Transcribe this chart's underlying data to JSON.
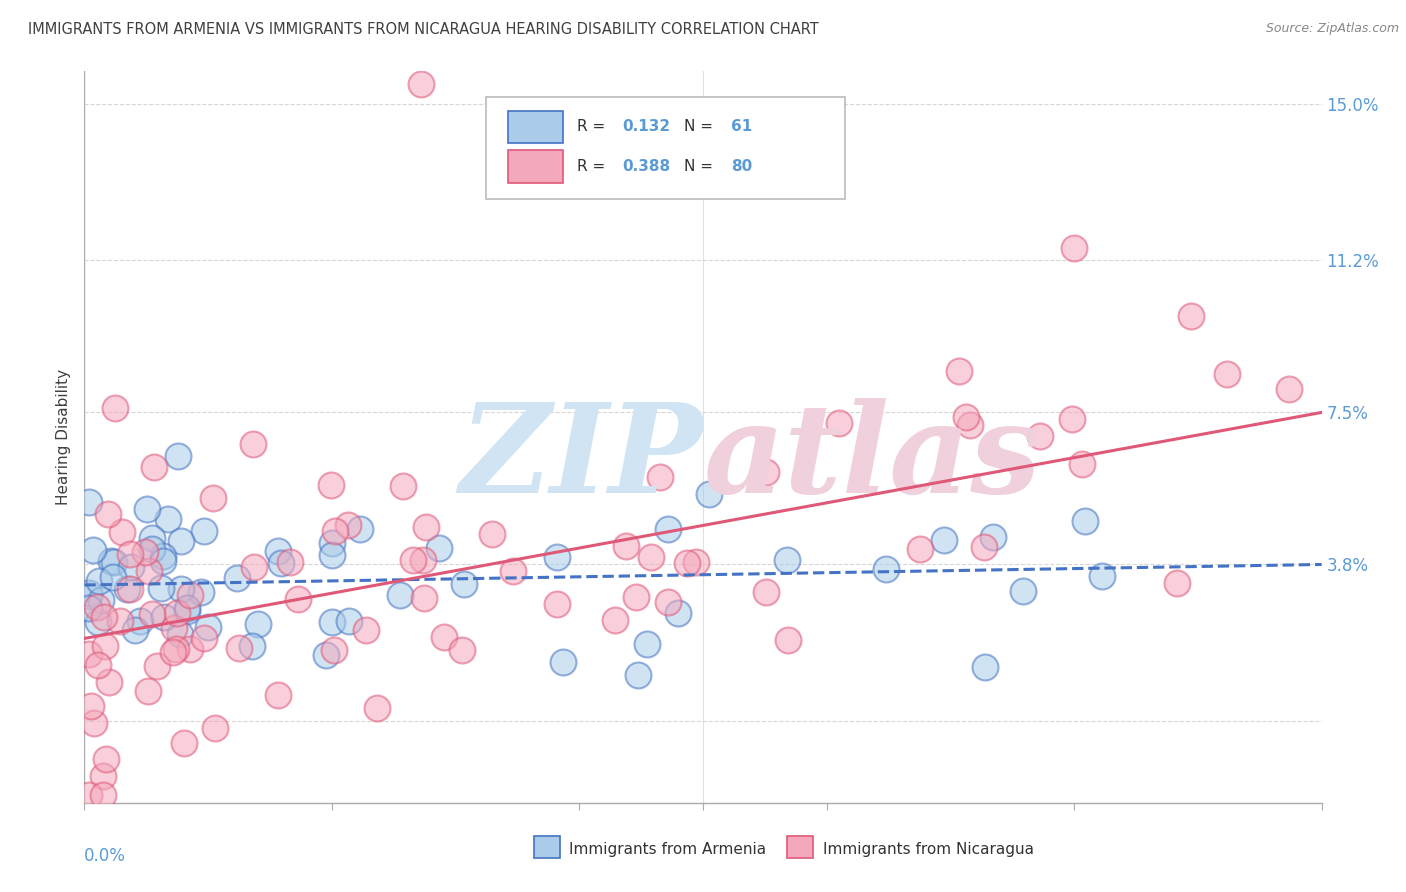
{
  "title": "IMMIGRANTS FROM ARMENIA VS IMMIGRANTS FROM NICARAGUA HEARING DISABILITY CORRELATION CHART",
  "source": "Source: ZipAtlas.com",
  "ylabel": "Hearing Disability",
  "ytick_vals": [
    0.0,
    0.038,
    0.075,
    0.112,
    0.15
  ],
  "ytick_labels": [
    "",
    "3.8%",
    "7.5%",
    "11.2%",
    "15.0%"
  ],
  "xlim": [
    0.0,
    0.25
  ],
  "ylim": [
    -0.02,
    0.158
  ],
  "color_armenia": "#aacce8",
  "color_nicaragua": "#f4a8bc",
  "color_trend_armenia": "#4472c4",
  "color_trend_nicaragua": "#e05878",
  "background_color": "#ffffff",
  "grid_color": "#cccccc",
  "tick_color": "#5b9bd5",
  "title_color": "#404040",
  "watermark_zip_color": "#d0e4f4",
  "watermark_atlas_color": "#f0d0dc",
  "trend_arm_x0": 0.0,
  "trend_arm_y0": 0.033,
  "trend_arm_x1": 0.25,
  "trend_arm_y1": 0.038,
  "trend_nic_x0": 0.0,
  "trend_nic_y0": 0.02,
  "trend_nic_x1": 0.25,
  "trend_nic_y1": 0.075
}
